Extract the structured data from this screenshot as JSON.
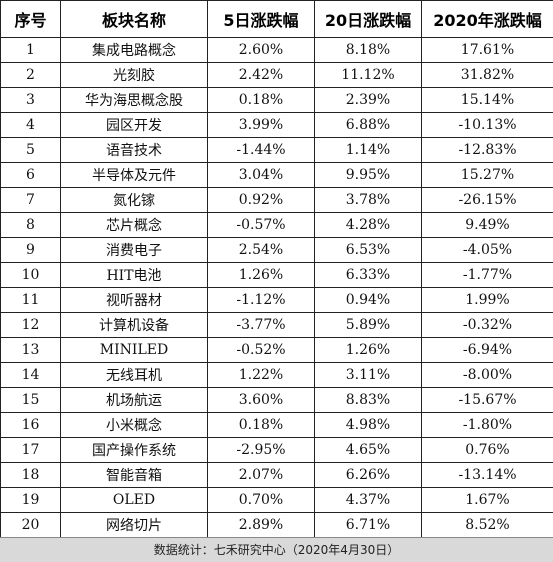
{
  "table": {
    "headers": [
      "序号",
      "板块名称",
      "5日涨跌幅",
      "20日涨跌幅",
      "2020年涨跌幅"
    ],
    "rows": [
      [
        "1",
        "集成电路概念",
        "2.60%",
        "8.18%",
        "17.61%"
      ],
      [
        "2",
        "光刻胶",
        "2.42%",
        "11.12%",
        "31.82%"
      ],
      [
        "3",
        "华为海思概念股",
        "0.18%",
        "2.39%",
        "15.14%"
      ],
      [
        "4",
        "园区开发",
        "3.99%",
        "6.88%",
        "-10.13%"
      ],
      [
        "5",
        "语音技术",
        "-1.44%",
        "1.14%",
        "-12.83%"
      ],
      [
        "6",
        "半导体及元件",
        "3.04%",
        "9.95%",
        "15.27%"
      ],
      [
        "7",
        "氮化镓",
        "0.92%",
        "3.78%",
        "-26.15%"
      ],
      [
        "8",
        "芯片概念",
        "-0.57%",
        "4.28%",
        "9.49%"
      ],
      [
        "9",
        "消费电子",
        "2.54%",
        "6.53%",
        "-4.05%"
      ],
      [
        "10",
        "HIT电池",
        "1.26%",
        "6.33%",
        "-1.77%"
      ],
      [
        "11",
        "视听器材",
        "-1.12%",
        "0.94%",
        "1.99%"
      ],
      [
        "12",
        "计算机设备",
        "-3.77%",
        "5.89%",
        "-0.32%"
      ],
      [
        "13",
        "MINILED",
        "-0.52%",
        "1.26%",
        "-6.94%"
      ],
      [
        "14",
        "无线耳机",
        "1.22%",
        "3.11%",
        "-8.00%"
      ],
      [
        "15",
        "机场航运",
        "3.60%",
        "8.83%",
        "-15.67%"
      ],
      [
        "16",
        "小米概念",
        "0.18%",
        "4.98%",
        "-1.80%"
      ],
      [
        "17",
        "国产操作系统",
        "-2.95%",
        "4.65%",
        "0.76%"
      ],
      [
        "18",
        "智能音箱",
        "2.07%",
        "6.26%",
        "-13.14%"
      ],
      [
        "19",
        "OLED",
        "0.70%",
        "4.37%",
        "1.67%"
      ],
      [
        "20",
        "网络切片",
        "2.89%",
        "6.71%",
        "8.52%"
      ]
    ]
  },
  "footer": {
    "source": "数据统计：七禾研究中心（2020年4月30日）"
  }
}
